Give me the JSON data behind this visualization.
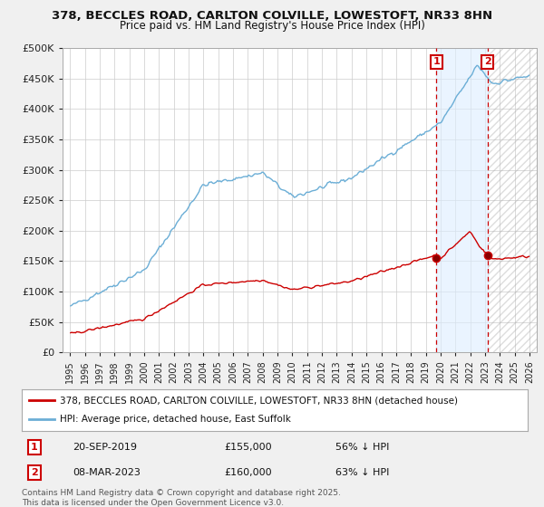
{
  "title": "378, BECCLES ROAD, CARLTON COLVILLE, LOWESTOFT, NR33 8HN",
  "subtitle": "Price paid vs. HM Land Registry's House Price Index (HPI)",
  "legend_line1": "378, BECCLES ROAD, CARLTON COLVILLE, LOWESTOFT, NR33 8HN (detached house)",
  "legend_line2": "HPI: Average price, detached house, East Suffolk",
  "annotation1_date": "20-SEP-2019",
  "annotation1_price": "£155,000",
  "annotation1_hpi": "56% ↓ HPI",
  "annotation2_date": "08-MAR-2023",
  "annotation2_price": "£160,000",
  "annotation2_hpi": "63% ↓ HPI",
  "footnote": "Contains HM Land Registry data © Crown copyright and database right 2025.\nThis data is licensed under the Open Government Licence v3.0.",
  "hpi_color": "#6baed6",
  "price_color": "#cc0000",
  "annotation_color": "#cc0000",
  "background_color": "#f0f0f0",
  "plot_bg_color": "#ffffff",
  "ylim": [
    0,
    500000
  ],
  "yticks": [
    0,
    50000,
    100000,
    150000,
    200000,
    250000,
    300000,
    350000,
    400000,
    450000,
    500000
  ],
  "xlim_start": 1994.5,
  "xlim_end": 2026.5,
  "xticks": [
    1995,
    1996,
    1997,
    1998,
    1999,
    2000,
    2001,
    2002,
    2003,
    2004,
    2005,
    2006,
    2007,
    2008,
    2009,
    2010,
    2011,
    2012,
    2013,
    2014,
    2015,
    2016,
    2017,
    2018,
    2019,
    2020,
    2021,
    2022,
    2023,
    2024,
    2025,
    2026
  ],
  "marker1_year": 2019.72,
  "marker1_price": 155000,
  "marker2_year": 2023.17,
  "marker2_price": 160000
}
